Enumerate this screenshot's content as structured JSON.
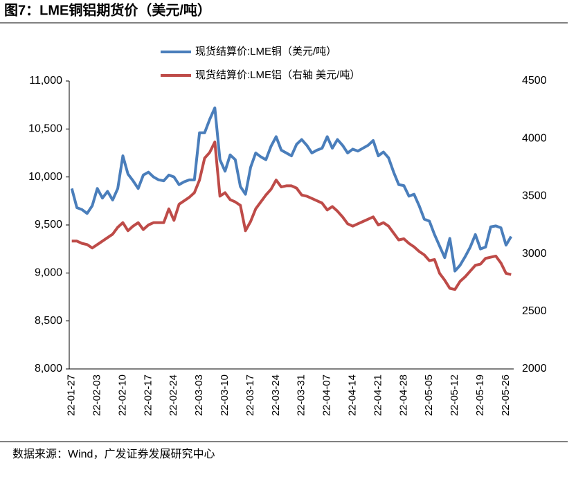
{
  "header": {
    "title": "图7：LME铜铝期货价（美元/吨）"
  },
  "footer": {
    "source": "数据来源：Wind，广发证券发展研究中心"
  },
  "chart_data": {
    "type": "line",
    "legend": "top",
    "categories": [
      "22-01-27",
      null,
      null,
      null,
      null,
      "22-02-03",
      null,
      null,
      null,
      null,
      "22-02-10",
      null,
      null,
      null,
      null,
      "22-02-17",
      null,
      null,
      null,
      null,
      "22-02-24",
      null,
      null,
      null,
      null,
      "22-03-03",
      null,
      null,
      null,
      null,
      "22-03-10",
      null,
      null,
      null,
      null,
      "22-03-17",
      null,
      null,
      null,
      null,
      "22-03-24",
      null,
      null,
      null,
      null,
      "22-03-31",
      null,
      null,
      null,
      null,
      "22-04-07",
      null,
      null,
      null,
      null,
      "22-04-14",
      null,
      null,
      null,
      null,
      "22-04-21",
      null,
      null,
      null,
      null,
      "22-04-28",
      null,
      null,
      null,
      null,
      "22-05-05",
      null,
      null,
      null,
      null,
      "22-05-12",
      null,
      null,
      null,
      null,
      "22-05-19",
      null,
      null,
      null,
      null,
      "22-05-26",
      null
    ],
    "series": [
      {
        "name": "现货结算价:LME铜（美元/吨）",
        "color": "#4a7ebb",
        "axis": "y",
        "values": [
          9880,
          9680,
          9660,
          9620,
          9700,
          9880,
          9780,
          9850,
          9760,
          9880,
          10220,
          10030,
          9960,
          9880,
          10020,
          10050,
          10000,
          9970,
          9960,
          10020,
          10000,
          9920,
          9950,
          9970,
          9970,
          10460,
          10460,
          10600,
          10720,
          10180,
          10060,
          10230,
          10180,
          9900,
          9820,
          10100,
          10250,
          10210,
          10180,
          10320,
          10420,
          10280,
          10250,
          10220,
          10340,
          10390,
          10330,
          10250,
          10280,
          10300,
          10420,
          10300,
          10390,
          10330,
          10250,
          10290,
          10270,
          10300,
          10330,
          10380,
          10220,
          10260,
          10200,
          10050,
          9920,
          9910,
          9800,
          9820,
          9700,
          9560,
          9540,
          9400,
          9280,
          9160,
          9360,
          9020,
          9080,
          9170,
          9270,
          9400,
          9250,
          9270,
          9480,
          9490,
          9470,
          9290,
          9380
        ]
      },
      {
        "name": "现货结算价:LME铝（右轴 美元/吨）",
        "color": "#be4b48",
        "axis": "y2",
        "values": [
          3110,
          3110,
          3090,
          3080,
          3050,
          3080,
          3110,
          3140,
          3170,
          3230,
          3270,
          3200,
          3240,
          3270,
          3210,
          3250,
          3270,
          3270,
          3270,
          3390,
          3290,
          3430,
          3460,
          3490,
          3530,
          3640,
          3830,
          3880,
          3970,
          3500,
          3530,
          3470,
          3450,
          3420,
          3200,
          3280,
          3390,
          3450,
          3510,
          3560,
          3640,
          3580,
          3590,
          3590,
          3570,
          3510,
          3500,
          3480,
          3460,
          3440,
          3380,
          3410,
          3370,
          3320,
          3260,
          3240,
          3260,
          3280,
          3300,
          3320,
          3250,
          3270,
          3240,
          3180,
          3120,
          3130,
          3090,
          3060,
          3020,
          2990,
          2940,
          2950,
          2830,
          2770,
          2700,
          2690,
          2760,
          2800,
          2850,
          2900,
          2910,
          2960,
          2970,
          2980,
          2920,
          2830,
          2820
        ]
      }
    ],
    "ylim": [
      8000,
      11000
    ],
    "yticks": [
      {
        "value": 8000,
        "label": "8,000"
      },
      {
        "value": 8500,
        "label": "8,500"
      },
      {
        "value": 9000,
        "label": "9,000"
      },
      {
        "value": 9500,
        "label": "9,500"
      },
      {
        "value": 10000,
        "label": "10,000"
      },
      {
        "value": 10500,
        "label": "10,500"
      },
      {
        "value": 11000,
        "label": "11,000"
      }
    ],
    "y2lim": [
      2000,
      4500
    ],
    "y2ticks": [
      2000,
      2500,
      3000,
      3500,
      4000,
      4500
    ],
    "grid": false
  }
}
